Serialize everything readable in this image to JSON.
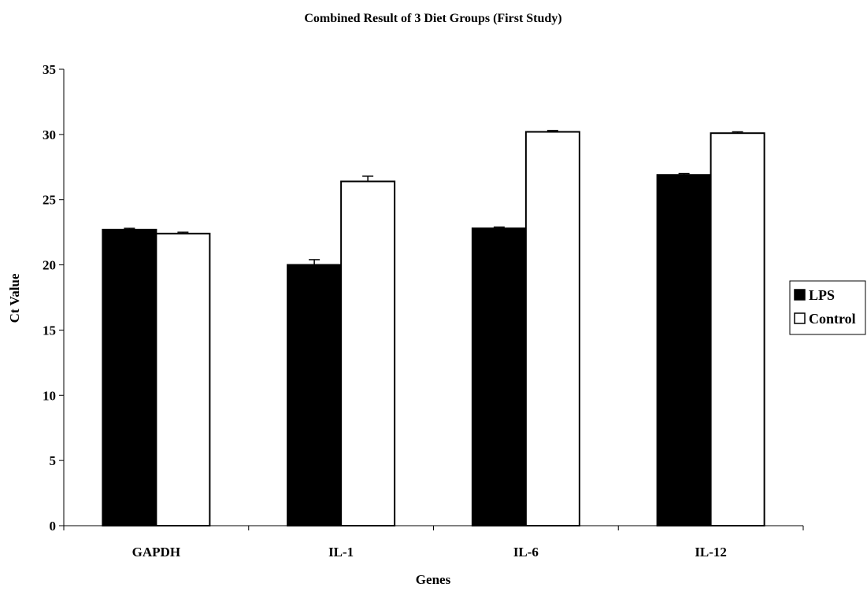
{
  "chart_data": {
    "type": "bar",
    "title": "Combined Result of 3 Diet Groups (First Study)",
    "xlabel": "Genes",
    "ylabel": "Ct Value",
    "categories": [
      "GAPDH",
      "IL-1",
      "IL-6",
      "IL-12"
    ],
    "series": [
      {
        "name": "LPS",
        "values": [
          22.7,
          20.0,
          22.8,
          26.9
        ],
        "errors": [
          0.1,
          0.4,
          0.1,
          0.1
        ],
        "fill": "#000000"
      },
      {
        "name": "Control",
        "values": [
          22.4,
          26.4,
          30.2,
          30.1
        ],
        "errors": [
          0.1,
          0.4,
          0.1,
          0.1
        ],
        "fill": "#ffffff"
      }
    ],
    "ylim": [
      0,
      35
    ],
    "yticks": [
      0,
      5,
      10,
      15,
      20,
      25,
      30,
      35
    ],
    "grid": false,
    "legend_position": "right"
  }
}
